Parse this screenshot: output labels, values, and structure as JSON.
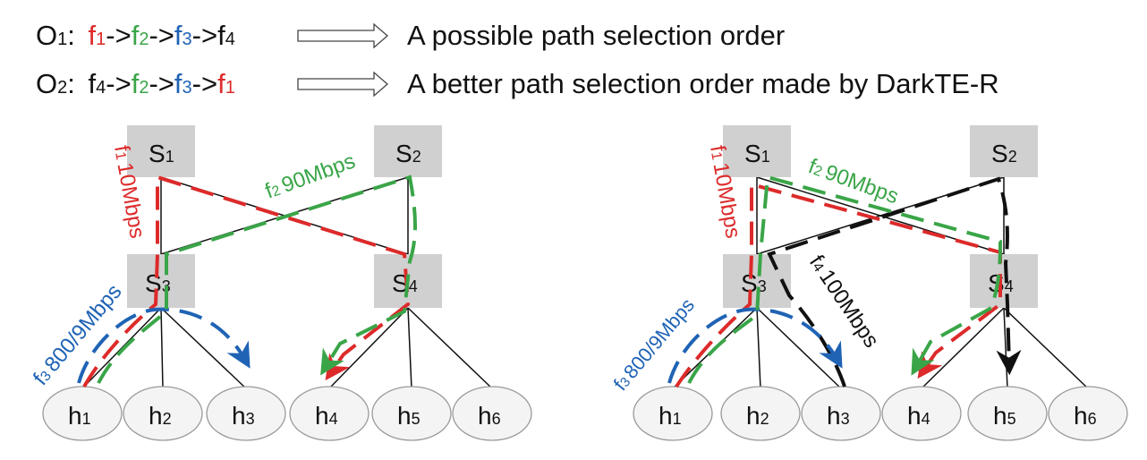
{
  "header": {
    "line1": {
      "label": "O",
      "sub": "1",
      "colon": ":",
      "seq": [
        {
          "name": "f",
          "sub": "1",
          "color": "#dd2a2a"
        },
        {
          "name": "f",
          "sub": "2",
          "color": "#3aa548"
        },
        {
          "name": "f",
          "sub": "3",
          "color": "#1f63b5"
        },
        {
          "name": "f",
          "sub": "4",
          "color": "#111111"
        }
      ],
      "sep": "->",
      "desc": "A possible path selection order"
    },
    "line2": {
      "label": "O",
      "sub": "2",
      "colon": ":",
      "seq": [
        {
          "name": "f",
          "sub": "4",
          "color": "#111111"
        },
        {
          "name": "f",
          "sub": "2",
          "color": "#3aa548"
        },
        {
          "name": "f",
          "sub": "3",
          "color": "#1f63b5"
        },
        {
          "name": "f",
          "sub": "1",
          "color": "#dd2a2a"
        }
      ],
      "sep": "->",
      "desc": "A better path selection order made by DarkTE-R"
    }
  },
  "switches": [
    {
      "name": "S",
      "sub": "1"
    },
    {
      "name": "S",
      "sub": "2"
    },
    {
      "name": "S",
      "sub": "3"
    },
    {
      "name": "S",
      "sub": "4"
    }
  ],
  "hosts": [
    {
      "name": "h",
      "sub": "1"
    },
    {
      "name": "h",
      "sub": "2"
    },
    {
      "name": "h",
      "sub": "3"
    },
    {
      "name": "h",
      "sub": "4"
    },
    {
      "name": "h",
      "sub": "5"
    },
    {
      "name": "h",
      "sub": "6"
    }
  ],
  "flows": {
    "f1": {
      "name": "f",
      "sub": "1",
      "rate": "10Mbps",
      "color": "#dd2a2a"
    },
    "f2": {
      "name": "f",
      "sub": "2",
      "rate": "90Mbps",
      "color": "#3aa548"
    },
    "f3": {
      "name": "f",
      "sub": "3",
      "rate": "800/9Mbps",
      "color": "#1f63b5"
    },
    "f4": {
      "name": "f",
      "sub": "4",
      "rate": "100Mbps",
      "color": "#111111"
    }
  },
  "colors": {
    "switch_fill": "#d0d0d0",
    "host_fill": "#f4f4f4",
    "host_stroke": "#9a9a9a",
    "link": "#111111"
  }
}
